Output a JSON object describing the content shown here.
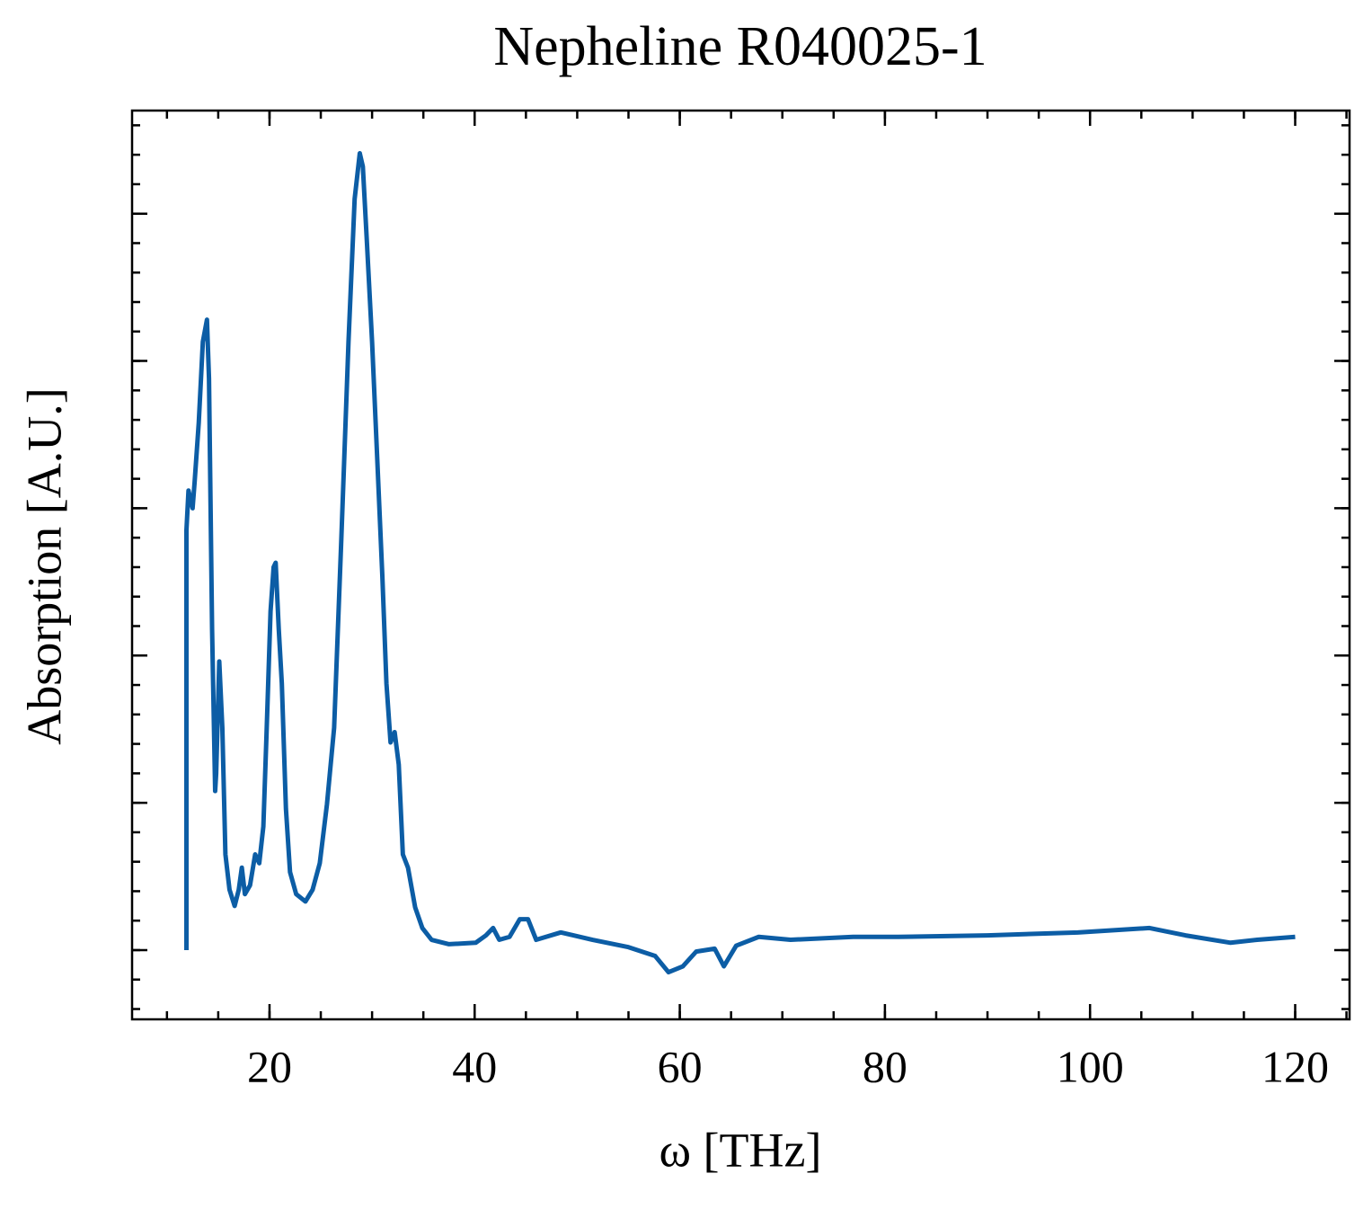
{
  "chart_data": {
    "type": "line",
    "title": "Nepheline R040025-1",
    "xlabel": "ω [THz]",
    "ylabel": "Absorption [A.U.]",
    "x": [
      11.9,
      11.9,
      12.1,
      12.5,
      12.7,
      13.1,
      13.5,
      13.9,
      14.1,
      14.4,
      14.7,
      14.8,
      15.1,
      15.4,
      15.7,
      16.1,
      16.6,
      17.0,
      17.3,
      17.6,
      18.1,
      18.6,
      19.0,
      19.4,
      19.7,
      20.1,
      20.4,
      20.6,
      20.9,
      21.2,
      21.6,
      22.0,
      22.6,
      23.5,
      24.2,
      24.9,
      25.6,
      26.3,
      27.0,
      27.7,
      28.3,
      28.8,
      29.1,
      29.5,
      30.0,
      30.5,
      31.0,
      31.4,
      31.8,
      32.2,
      32.6,
      33.0,
      33.5,
      34.2,
      34.9,
      35.8,
      37.5,
      40.1,
      41.1,
      41.8,
      42.4,
      43.4,
      44.4,
      45.2,
      46.0,
      48.4,
      51.5,
      55.0,
      57.6,
      58.9,
      60.3,
      61.6,
      63.4,
      64.3,
      65.5,
      67.7,
      70.8,
      76.9,
      81.3,
      90.0,
      98.8,
      105.8,
      109.3,
      113.7,
      116.3,
      120.0
    ],
    "series": [
      {
        "name": "Nepheline R040025-1",
        "color": "#0C5DA5",
        "values": [
          0.0,
          2.85,
          3.12,
          3.0,
          3.18,
          3.58,
          4.13,
          4.28,
          3.88,
          2.18,
          1.08,
          1.2,
          1.96,
          1.51,
          0.65,
          0.41,
          0.3,
          0.41,
          0.56,
          0.38,
          0.44,
          0.65,
          0.59,
          0.84,
          1.45,
          2.3,
          2.6,
          2.63,
          2.18,
          1.81,
          0.96,
          0.53,
          0.38,
          0.33,
          0.41,
          0.59,
          0.99,
          1.51,
          2.79,
          4.13,
          5.1,
          5.41,
          5.32,
          4.8,
          4.13,
          3.34,
          2.54,
          1.81,
          1.41,
          1.48,
          1.26,
          0.65,
          0.56,
          0.29,
          0.15,
          0.07,
          0.04,
          0.05,
          0.1,
          0.15,
          0.07,
          0.09,
          0.21,
          0.21,
          0.07,
          0.12,
          0.07,
          0.02,
          -0.04,
          -0.15,
          -0.11,
          -0.01,
          0.01,
          -0.11,
          0.03,
          0.09,
          0.07,
          0.09,
          0.09,
          0.1,
          0.12,
          0.15,
          0.1,
          0.05,
          0.07,
          0.09
        ]
      }
    ],
    "xlim": [
      6.6,
      125.3
    ],
    "xticks": [
      20,
      40,
      60,
      80,
      100,
      120
    ],
    "ylim": [
      -0.47,
      5.7
    ],
    "yticks": [
      0,
      1,
      2,
      3,
      4,
      5
    ]
  }
}
